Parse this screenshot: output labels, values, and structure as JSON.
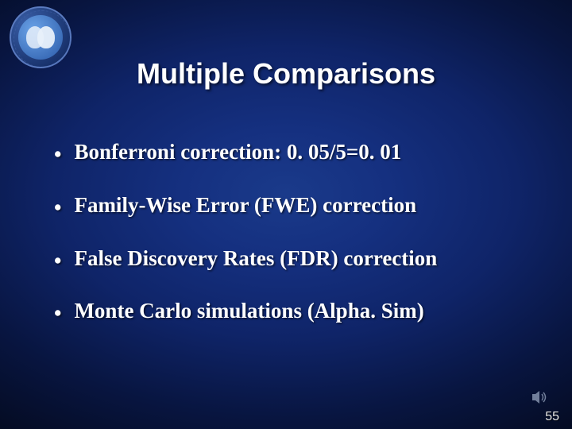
{
  "title": {
    "text": "Multiple Comparisons",
    "fontsize": 36,
    "color": "#ffffff"
  },
  "bullets": {
    "fontsize": 27,
    "color": "#ffffff",
    "gap": 33,
    "items": [
      "Bonferroni correction: 0. 05/5=0. 01",
      "Family-Wise Error (FWE) correction",
      "False Discovery Rates (FDR) correction",
      "Monte Carlo simulations (Alpha. Sim)"
    ]
  },
  "page_number": {
    "text": "55",
    "fontsize": 16,
    "color": "#e8e8e8"
  },
  "logo": {
    "outer_color": "#0d2358",
    "inner_color": "#2a5aa8",
    "head_color": "#e8f0fa"
  },
  "sound_icon": {
    "color": "#b8c8e0"
  }
}
